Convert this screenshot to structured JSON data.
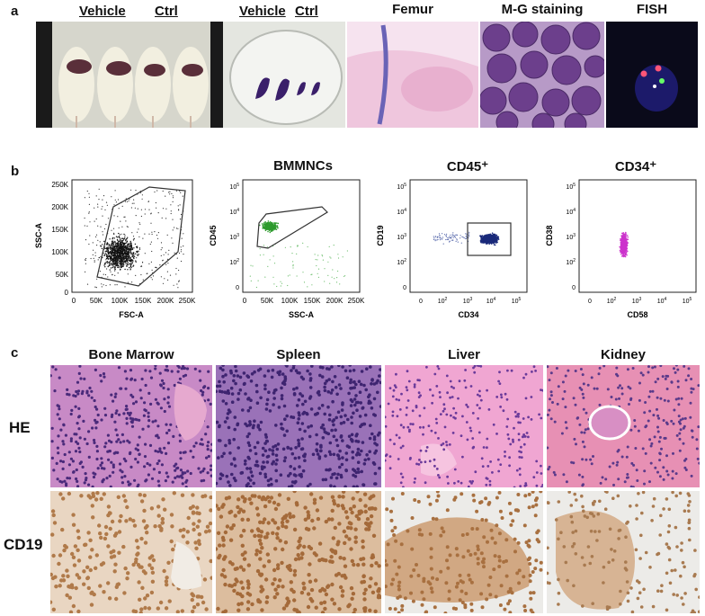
{
  "panels": {
    "a": {
      "letter": "a",
      "mice_labels": {
        "left": "Vehicle",
        "right": "Ctrl"
      },
      "spleen_labels": {
        "left": "Vehicle",
        "right": "Ctrl"
      },
      "femur_title": "Femur",
      "mg_title": "M-G staining",
      "fish_title": "FISH"
    },
    "b": {
      "letter": "b",
      "plot1": {
        "ylabel": "SSC-A",
        "xlabel": "FSC-A",
        "yticks": [
          "250K",
          "200K",
          "150K",
          "100K",
          "50K",
          "0"
        ],
        "xticks": [
          "0",
          "50K",
          "100K",
          "150K",
          "200K",
          "250K"
        ]
      },
      "plot2": {
        "title": "BMMNCs",
        "ylabel": "CD45",
        "xlabel": "SSC-A",
        "xticks": [
          "0",
          "50K",
          "100K",
          "150K",
          "200K",
          "250K"
        ]
      },
      "plot3": {
        "title": "CD45⁺",
        "ylabel": "CD19",
        "xlabel": "CD34"
      },
      "plot4": {
        "title": "CD34⁺",
        "ylabel": "CD38",
        "xlabel": "CD58"
      }
    },
    "c": {
      "letter": "c",
      "columns": [
        "Bone Marrow",
        "Spleen",
        "Liver",
        "Kidney"
      ],
      "rows": [
        "HE",
        "CD19"
      ]
    }
  },
  "colors": {
    "he_pink": "#c98fc2",
    "he_purple": "#8a5aa8",
    "ihc_brown": "#b07a4a",
    "ihc_bg": "#ecebe8",
    "gfp_green": "#2e9b2e",
    "navy": "#1a2a7a",
    "magenta": "#cc33cc"
  }
}
